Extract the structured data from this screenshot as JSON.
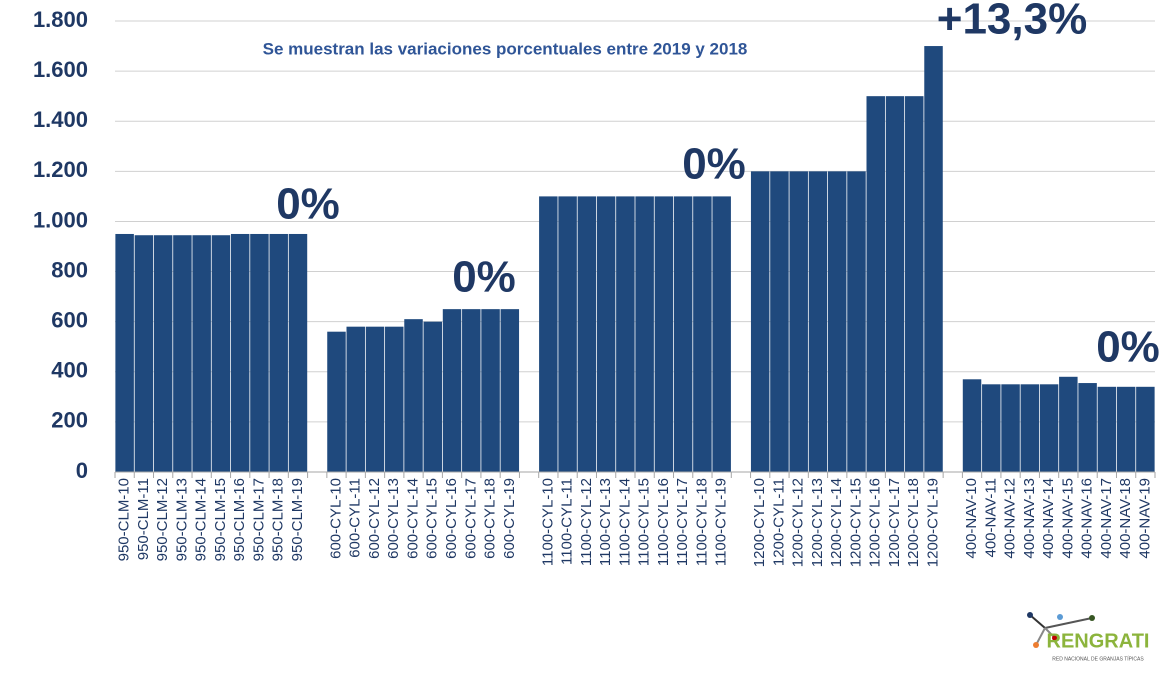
{
  "chart_data": {
    "type": "bar",
    "subtitle": "Se muestran las variaciones porcentuales entre 2019 y 2018",
    "categories": [
      "950-CLM-10",
      "950-CLM-11",
      "950-CLM-12",
      "950-CLM-13",
      "950-CLM-14",
      "950-CLM-15",
      "950-CLM-16",
      "950-CLM-17",
      "950-CLM-18",
      "950-CLM-19",
      null,
      "600-CYL-10",
      "600-CYL-11",
      "600-CYL-12",
      "600-CYL-13",
      "600-CYL-14",
      "600-CYL-15",
      "600-CYL-16",
      "600-CYL-17",
      "600-CYL-18",
      "600-CYL-19",
      null,
      "1100-CYL-10",
      "1100-CYL-11",
      "1100-CYL-12",
      "1100-CYL-13",
      "1100-CYL-14",
      "1100-CYL-15",
      "1100-CYL-16",
      "1100-CYL-17",
      "1100-CYL-18",
      "1100-CYL-19",
      null,
      "1200-CYL-10",
      "1200-CYL-11",
      "1200-CYL-12",
      "1200-CYL-13",
      "1200-CYL-14",
      "1200-CYL-15",
      "1200-CYL-16",
      "1200-CYL-17",
      "1200-CYL-18",
      "1200-CYL-19",
      null,
      "400-NAV-10",
      "400-NAV-11",
      "400-NAV-12",
      "400-NAV-13",
      "400-NAV-14",
      "400-NAV-15",
      "400-NAV-16",
      "400-NAV-17",
      "400-NAV-18",
      "400-NAV-19"
    ],
    "values": [
      950,
      945,
      945,
      945,
      945,
      945,
      950,
      950,
      950,
      950,
      null,
      560,
      580,
      580,
      580,
      610,
      600,
      650,
      650,
      650,
      650,
      null,
      1100,
      1100,
      1100,
      1100,
      1100,
      1100,
      1100,
      1100,
      1100,
      1100,
      null,
      1200,
      1200,
      1200,
      1200,
      1200,
      1200,
      1500,
      1500,
      1500,
      1700,
      null,
      370,
      350,
      350,
      350,
      350,
      380,
      355,
      340,
      340,
      340
    ],
    "color": "#1f497d",
    "ylim": [
      0,
      1800
    ],
    "yticks": [
      0,
      200,
      400,
      600,
      800,
      {
        "value": 1000,
        "label": "1.000"
      },
      {
        "value": 1200,
        "label": "1.200"
      },
      {
        "value": 1400,
        "label": "1.400"
      },
      {
        "value": 1600,
        "label": "1.600"
      },
      {
        "value": 1800,
        "label": "1.800"
      }
    ],
    "grid": true,
    "annotations": [
      "0%",
      "0%",
      "0%",
      "+13,3%",
      "0%"
    ]
  },
  "logo": {
    "name": "RENGRATI",
    "tagline": "RED NACIONAL DE GRANJAS TÍPICAS"
  }
}
